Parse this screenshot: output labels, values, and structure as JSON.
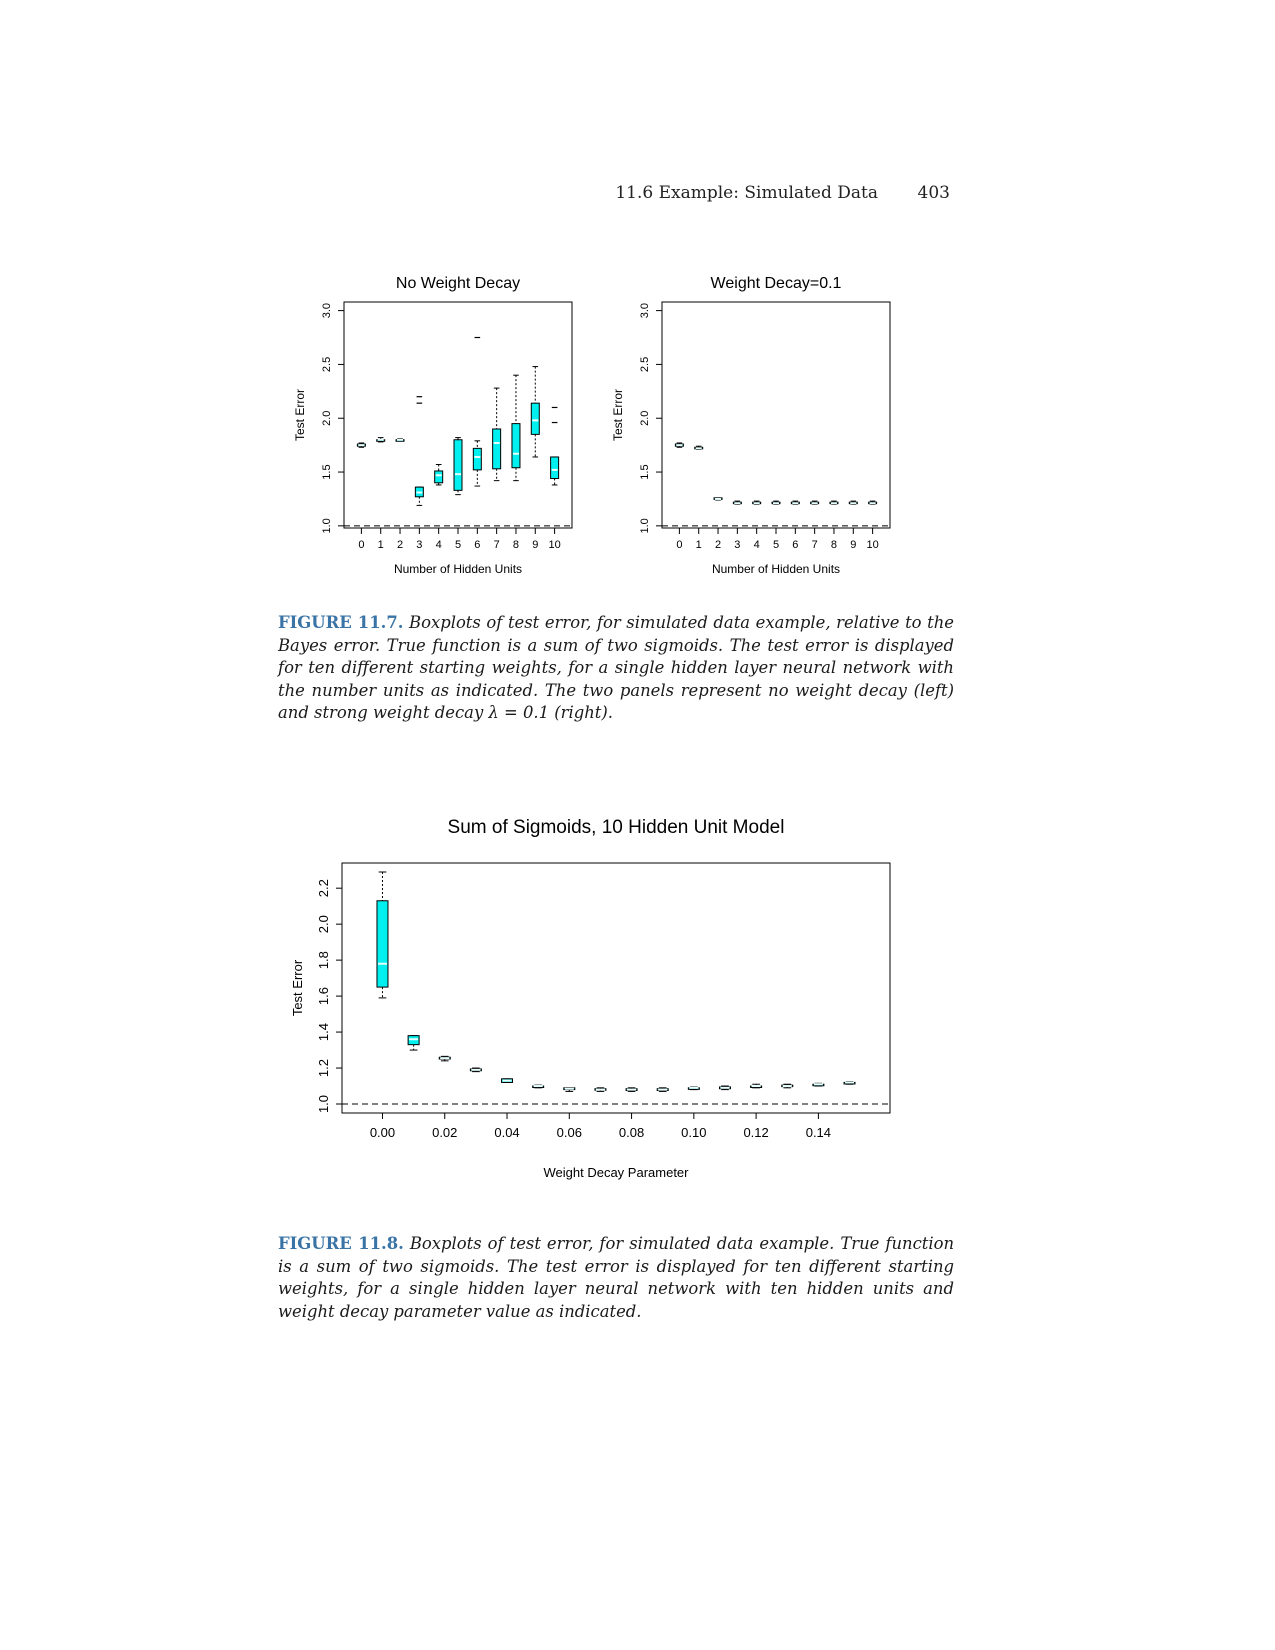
{
  "header": {
    "section": "11.6 Example: Simulated Data",
    "page_number": "403"
  },
  "figure_11_7": {
    "label": "FIGURE 11.7.",
    "caption": "Boxplots of test error, for simulated data example, relative to the Bayes error. True function is a sum of two sigmoids. The test error is displayed for ten different starting weights, for a single hidden layer neural network with the number units as indicated. The two panels represent no weight decay (left) and strong weight decay λ = 0.1 (right)."
  },
  "figure_11_8": {
    "label": "FIGURE 11.8.",
    "caption": "Boxplots of test error, for simulated data example. True function is a sum of two sigmoids. The test error is displayed for ten different starting weights, for a single hidden layer neural network with ten hidden units and weight decay parameter value as indicated."
  },
  "colors": {
    "box_fill": "#00f0f0",
    "median": "#e8ffff",
    "stroke": "#000000"
  },
  "chart_data": [
    {
      "type": "boxplot",
      "title": "No Weight Decay",
      "xlabel": "Number of Hidden Units",
      "ylabel": "Test Error",
      "categories": [
        "0",
        "1",
        "2",
        "3",
        "4",
        "5",
        "6",
        "7",
        "8",
        "9",
        "10"
      ],
      "yticks": [
        "1.0",
        "1.5",
        "2.0",
        "2.5",
        "3.0"
      ],
      "ylim": [
        0.98,
        3.08
      ],
      "reference_line": 1.0,
      "boxes": [
        {
          "min": 1.73,
          "q1": 1.74,
          "median": 1.75,
          "q3": 1.76,
          "max": 1.77,
          "outliers": []
        },
        {
          "min": 1.78,
          "q1": 1.79,
          "median": 1.8,
          "q3": 1.8,
          "max": 1.82,
          "outliers": []
        },
        {
          "min": 1.79,
          "q1": 1.8,
          "median": 1.8,
          "q3": 1.8,
          "max": 1.81,
          "outliers": []
        },
        {
          "min": 1.19,
          "q1": 1.27,
          "median": 1.31,
          "q3": 1.36,
          "max": 1.36,
          "outliers": [
            2.14,
            2.2
          ]
        },
        {
          "min": 1.38,
          "q1": 1.4,
          "median": 1.47,
          "q3": 1.51,
          "max": 1.57,
          "outliers": []
        },
        {
          "min": 1.29,
          "q1": 1.33,
          "median": 1.48,
          "q3": 1.8,
          "max": 1.82,
          "outliers": []
        },
        {
          "min": 1.37,
          "q1": 1.52,
          "median": 1.64,
          "q3": 1.72,
          "max": 1.79,
          "outliers": [
            2.75
          ]
        },
        {
          "min": 1.42,
          "q1": 1.53,
          "median": 1.77,
          "q3": 1.9,
          "max": 2.28,
          "outliers": []
        },
        {
          "min": 1.42,
          "q1": 1.54,
          "median": 1.67,
          "q3": 1.95,
          "max": 2.4,
          "outliers": []
        },
        {
          "min": 1.64,
          "q1": 1.85,
          "median": 1.98,
          "q3": 2.14,
          "max": 2.48,
          "outliers": []
        },
        {
          "min": 1.38,
          "q1": 1.44,
          "median": 1.52,
          "q3": 1.64,
          "max": 1.64,
          "outliers": [
            1.96,
            2.1
          ]
        }
      ]
    },
    {
      "type": "boxplot",
      "title": "Weight Decay=0.1",
      "xlabel": "Number of Hidden Units",
      "ylabel": "Test Error",
      "categories": [
        "0",
        "1",
        "2",
        "3",
        "4",
        "5",
        "6",
        "7",
        "8",
        "9",
        "10"
      ],
      "yticks": [
        "1.0",
        "1.5",
        "2.0",
        "2.5",
        "3.0"
      ],
      "ylim": [
        0.98,
        3.08
      ],
      "reference_line": 1.0,
      "boxes": [
        {
          "min": 1.73,
          "q1": 1.74,
          "median": 1.75,
          "q3": 1.76,
          "max": 1.77,
          "outliers": []
        },
        {
          "min": 1.71,
          "q1": 1.72,
          "median": 1.72,
          "q3": 1.73,
          "max": 1.74,
          "outliers": []
        },
        {
          "min": 1.24,
          "q1": 1.25,
          "median": 1.25,
          "q3": 1.26,
          "max": 1.26,
          "outliers": []
        },
        {
          "min": 1.2,
          "q1": 1.21,
          "median": 1.21,
          "q3": 1.22,
          "max": 1.23,
          "outliers": []
        },
        {
          "min": 1.2,
          "q1": 1.21,
          "median": 1.21,
          "q3": 1.22,
          "max": 1.23,
          "outliers": []
        },
        {
          "min": 1.2,
          "q1": 1.21,
          "median": 1.21,
          "q3": 1.22,
          "max": 1.23,
          "outliers": []
        },
        {
          "min": 1.2,
          "q1": 1.21,
          "median": 1.21,
          "q3": 1.22,
          "max": 1.23,
          "outliers": []
        },
        {
          "min": 1.2,
          "q1": 1.21,
          "median": 1.21,
          "q3": 1.22,
          "max": 1.23,
          "outliers": []
        },
        {
          "min": 1.2,
          "q1": 1.21,
          "median": 1.21,
          "q3": 1.22,
          "max": 1.23,
          "outliers": []
        },
        {
          "min": 1.2,
          "q1": 1.21,
          "median": 1.21,
          "q3": 1.22,
          "max": 1.23,
          "outliers": []
        },
        {
          "min": 1.2,
          "q1": 1.21,
          "median": 1.21,
          "q3": 1.22,
          "max": 1.23,
          "outliers": []
        }
      ]
    },
    {
      "type": "boxplot",
      "title": "Sum of Sigmoids, 10 Hidden Unit Model",
      "xlabel": "Weight Decay Parameter",
      "ylabel": "Test Error",
      "x": [
        0.0,
        0.01,
        0.02,
        0.03,
        0.04,
        0.05,
        0.06,
        0.07,
        0.08,
        0.09,
        0.1,
        0.11,
        0.12,
        0.13,
        0.14,
        0.15
      ],
      "xticks": [
        "0.00",
        "0.02",
        "0.04",
        "0.06",
        "0.08",
        "0.10",
        "0.12",
        "0.14"
      ],
      "xtick_values": [
        0.0,
        0.02,
        0.04,
        0.06,
        0.08,
        0.1,
        0.12,
        0.14
      ],
      "xlim": [
        -0.013,
        0.163
      ],
      "yticks": [
        "1.0",
        "1.2",
        "1.4",
        "1.6",
        "1.8",
        "2.0",
        "2.2"
      ],
      "ylim": [
        0.95,
        2.34
      ],
      "reference_line": 1.0,
      "boxes": [
        {
          "min": 1.59,
          "q1": 1.65,
          "median": 1.78,
          "q3": 2.13,
          "max": 2.29,
          "outliers": []
        },
        {
          "min": 1.3,
          "q1": 1.33,
          "median": 1.36,
          "q3": 1.38,
          "max": 1.38,
          "outliers": []
        },
        {
          "min": 1.24,
          "q1": 1.25,
          "median": 1.255,
          "q3": 1.26,
          "max": 1.265,
          "outliers": []
        },
        {
          "min": 1.18,
          "q1": 1.185,
          "median": 1.19,
          "q3": 1.195,
          "max": 1.2,
          "outliers": []
        },
        {
          "min": 1.12,
          "q1": 1.12,
          "median": 1.13,
          "q3": 1.14,
          "max": 1.14,
          "outliers": []
        },
        {
          "min": 1.09,
          "q1": 1.095,
          "median": 1.1,
          "q3": 1.1,
          "max": 1.105,
          "outliers": []
        },
        {
          "min": 1.07,
          "q1": 1.08,
          "median": 1.085,
          "q3": 1.09,
          "max": 1.09,
          "outliers": []
        },
        {
          "min": 1.07,
          "q1": 1.08,
          "median": 1.08,
          "q3": 1.085,
          "max": 1.09,
          "outliers": []
        },
        {
          "min": 1.07,
          "q1": 1.075,
          "median": 1.08,
          "q3": 1.085,
          "max": 1.09,
          "outliers": []
        },
        {
          "min": 1.07,
          "q1": 1.075,
          "median": 1.08,
          "q3": 1.085,
          "max": 1.09,
          "outliers": []
        },
        {
          "min": 1.08,
          "q1": 1.085,
          "median": 1.09,
          "q3": 1.09,
          "max": 1.095,
          "outliers": []
        },
        {
          "min": 1.08,
          "q1": 1.085,
          "median": 1.09,
          "q3": 1.095,
          "max": 1.1,
          "outliers": []
        },
        {
          "min": 1.09,
          "q1": 1.095,
          "median": 1.1,
          "q3": 1.1,
          "max": 1.11,
          "outliers": []
        },
        {
          "min": 1.09,
          "q1": 1.1,
          "median": 1.1,
          "q3": 1.105,
          "max": 1.11,
          "outliers": []
        },
        {
          "min": 1.1,
          "q1": 1.105,
          "median": 1.11,
          "q3": 1.11,
          "max": 1.115,
          "outliers": []
        },
        {
          "min": 1.11,
          "q1": 1.115,
          "median": 1.12,
          "q3": 1.12,
          "max": 1.125,
          "outliers": []
        }
      ]
    }
  ]
}
